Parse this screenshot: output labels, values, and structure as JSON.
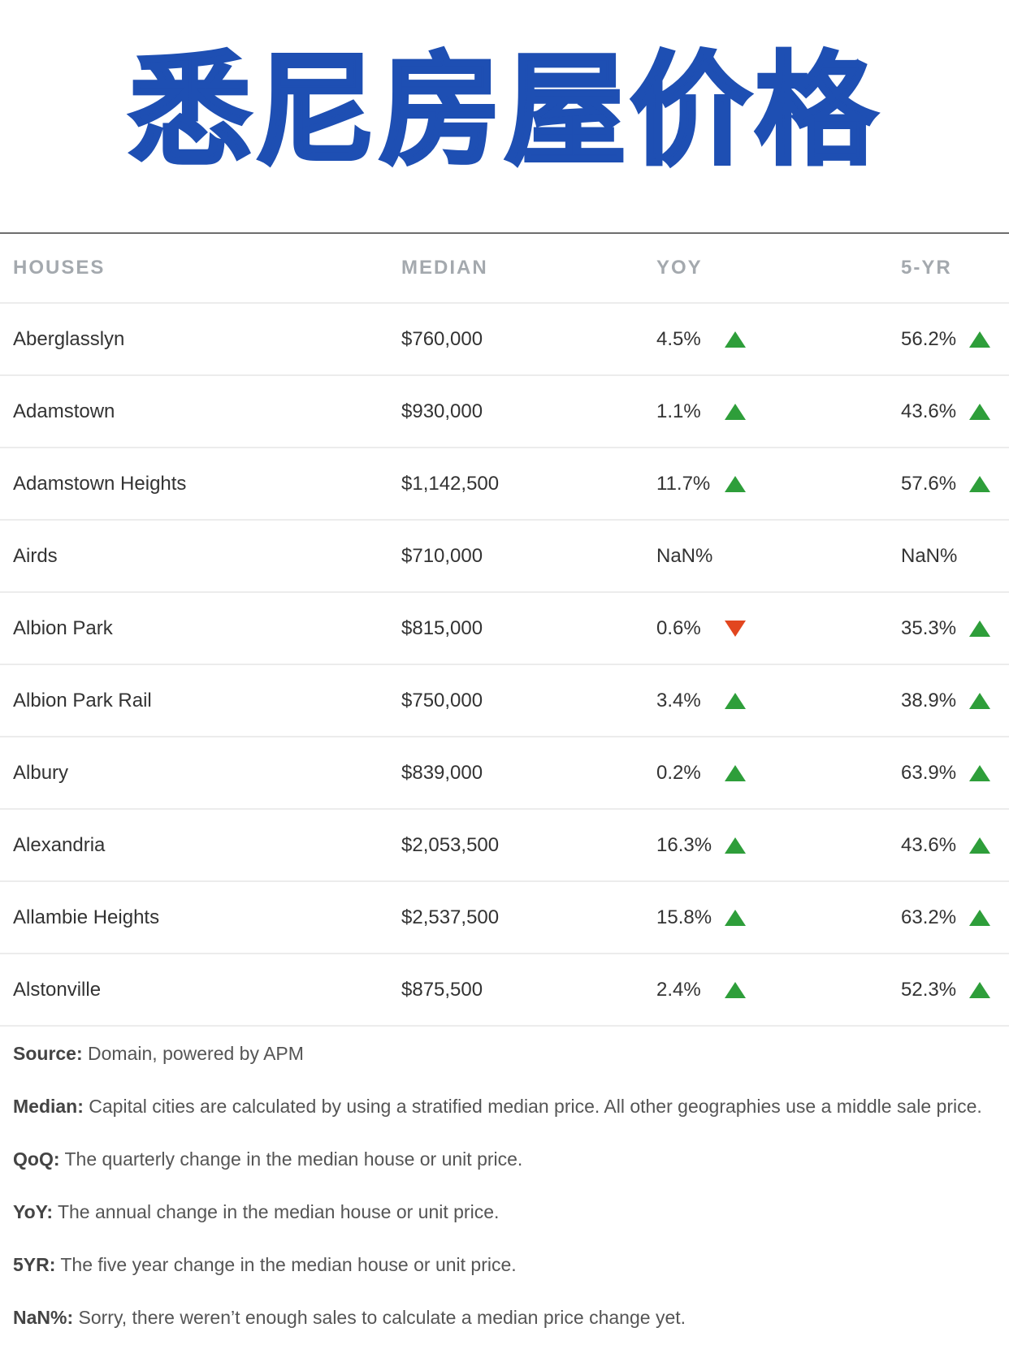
{
  "title": "悉尼房屋价格",
  "colors": {
    "title": "#1e4fb3",
    "up": "#2e9e3a",
    "down": "#e2461f",
    "header_text": "#a4a9ae"
  },
  "table": {
    "headers": {
      "suburb": "HOUSES",
      "median": "MEDIAN",
      "yoy": "YOY",
      "five_yr": "5-YR"
    },
    "rows": [
      {
        "suburb": "Aberglasslyn",
        "median": "$760,000",
        "yoy": "4.5%",
        "yoy_trend": "up",
        "five_yr": "56.2%",
        "five_yr_trend": "up"
      },
      {
        "suburb": "Adamstown",
        "median": "$930,000",
        "yoy": "1.1%",
        "yoy_trend": "up",
        "five_yr": "43.6%",
        "five_yr_trend": "up"
      },
      {
        "suburb": "Adamstown Heights",
        "median": "$1,142,500",
        "yoy": "11.7%",
        "yoy_trend": "up",
        "five_yr": "57.6%",
        "five_yr_trend": "up"
      },
      {
        "suburb": "Airds",
        "median": "$710,000",
        "yoy": "NaN%",
        "yoy_trend": "none",
        "five_yr": "NaN%",
        "five_yr_trend": "none"
      },
      {
        "suburb": "Albion Park",
        "median": "$815,000",
        "yoy": "0.6%",
        "yoy_trend": "down",
        "five_yr": "35.3%",
        "five_yr_trend": "up"
      },
      {
        "suburb": "Albion Park Rail",
        "median": "$750,000",
        "yoy": "3.4%",
        "yoy_trend": "up",
        "five_yr": "38.9%",
        "five_yr_trend": "up"
      },
      {
        "suburb": "Albury",
        "median": "$839,000",
        "yoy": "0.2%",
        "yoy_trend": "up",
        "five_yr": "63.9%",
        "five_yr_trend": "up"
      },
      {
        "suburb": "Alexandria",
        "median": "$2,053,500",
        "yoy": "16.3%",
        "yoy_trend": "up",
        "five_yr": "43.6%",
        "five_yr_trend": "up"
      },
      {
        "suburb": "Allambie Heights",
        "median": "$2,537,500",
        "yoy": "15.8%",
        "yoy_trend": "up",
        "five_yr": "63.2%",
        "five_yr_trend": "up"
      },
      {
        "suburb": "Alstonville",
        "median": "$875,500",
        "yoy": "2.4%",
        "yoy_trend": "up",
        "five_yr": "52.3%",
        "five_yr_trend": "up"
      }
    ]
  },
  "notes": [
    {
      "label": "Source:",
      "text": " Domain, powered by APM"
    },
    {
      "label": "Median:",
      "text": " Capital cities are calculated by using a stratified median price. All other geographies use a middle sale price."
    },
    {
      "label": "QoQ:",
      "text": " The quarterly change in the median house or unit price."
    },
    {
      "label": "YoY:",
      "text": " The annual change in the median house or unit price."
    },
    {
      "label": "5YR:",
      "text": " The five year change in the median house or unit price."
    },
    {
      "label": "NaN%:",
      "text": " Sorry, there weren’t enough sales to calculate a median price change yet."
    }
  ]
}
